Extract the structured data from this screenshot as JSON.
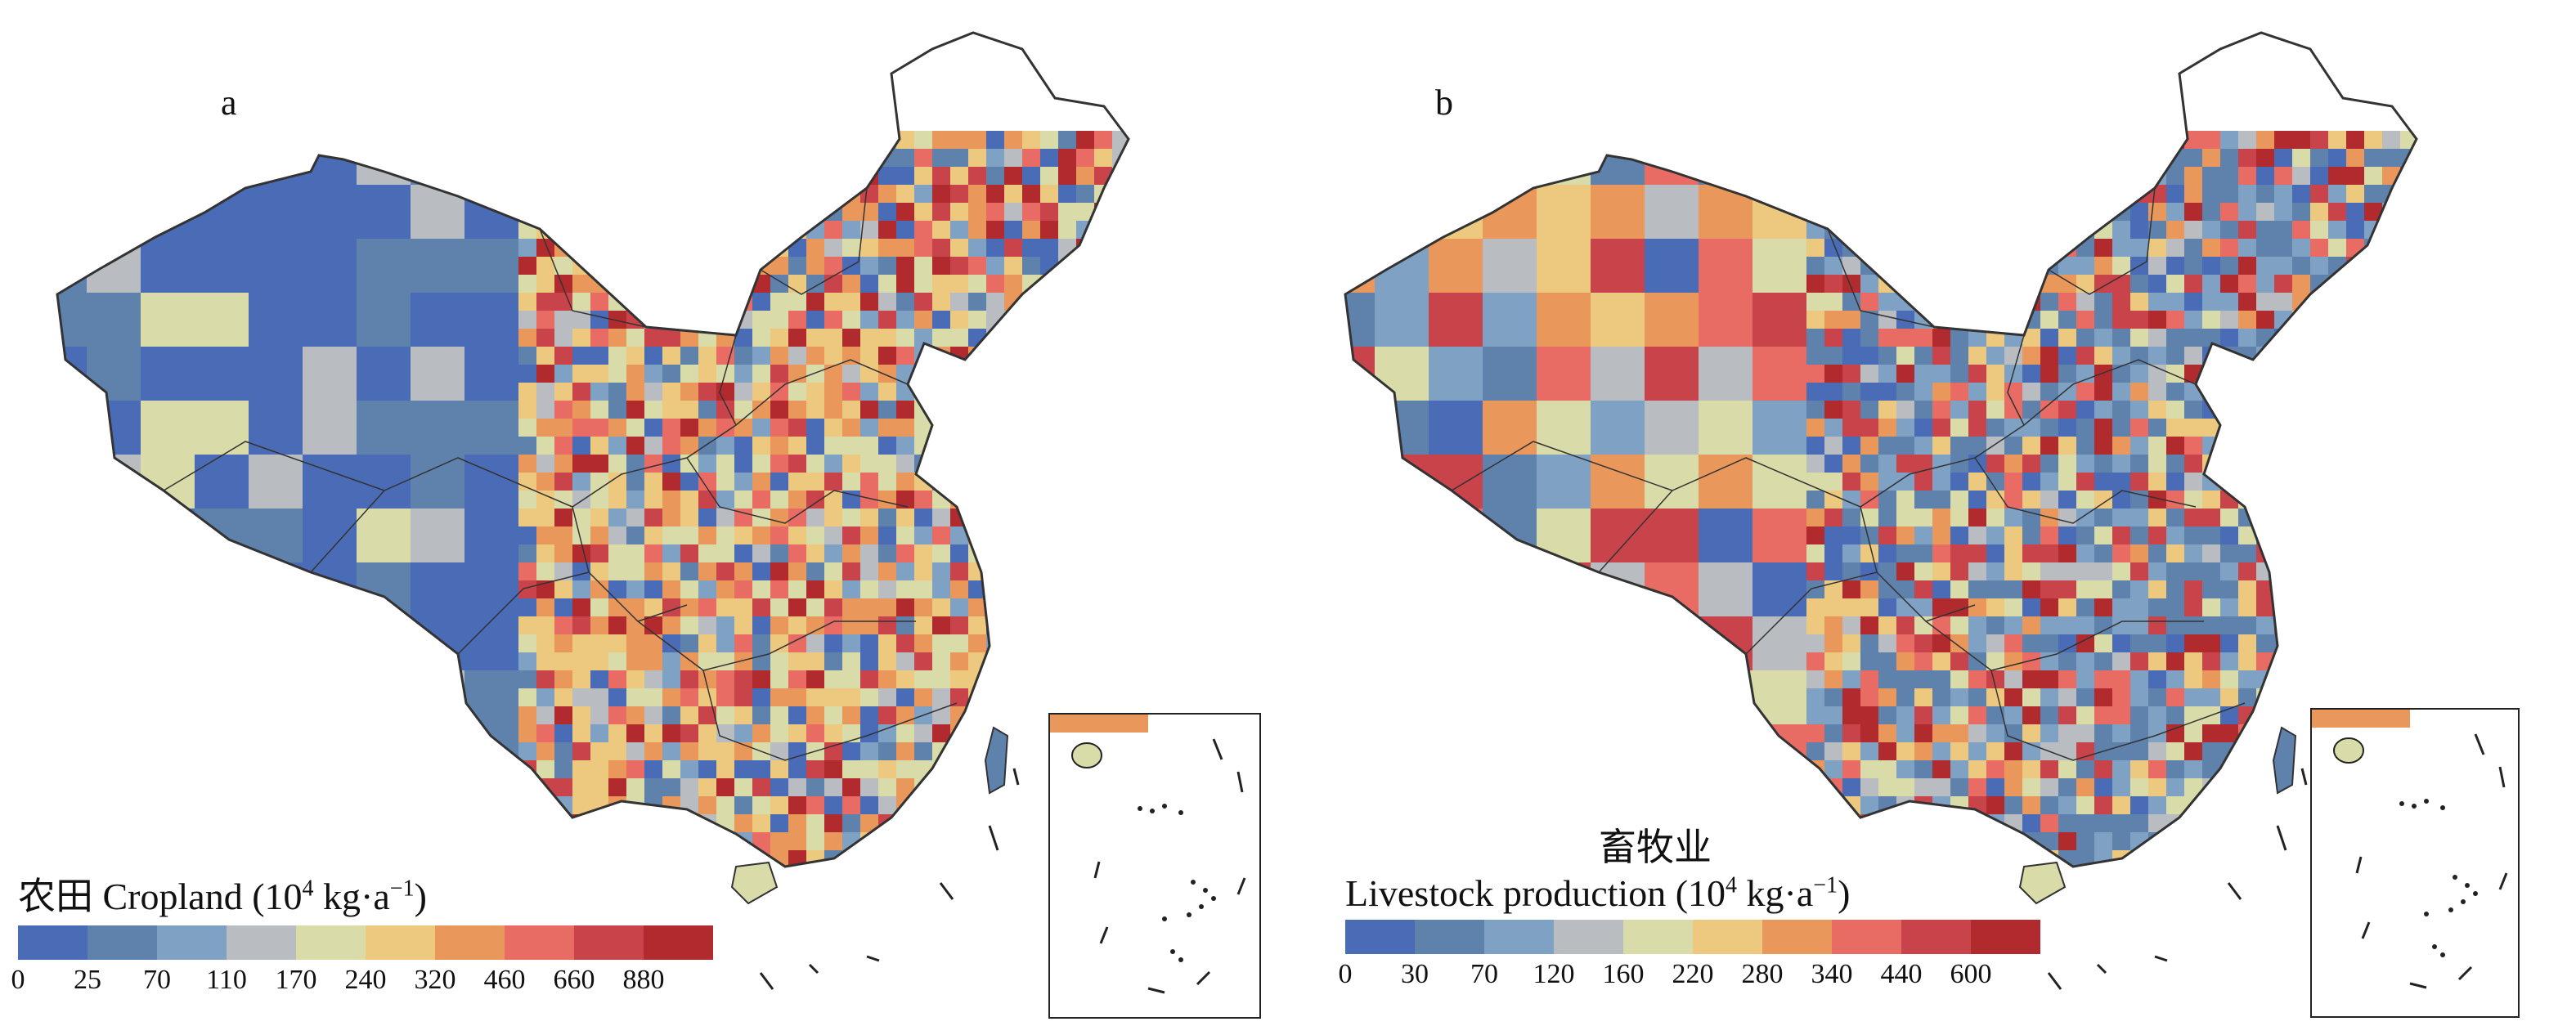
{
  "panels": [
    {
      "label": "a",
      "legend": {
        "title_cn": "农田",
        "title_en": "Cropland",
        "unit_prefix": "(10",
        "unit_exp": "4",
        "unit_mid": " kg·a",
        "unit_exp2": "−1",
        "unit_suffix": ")",
        "ticks": [
          "0",
          "25",
          "70",
          "110",
          "170",
          "240",
          "320",
          "460",
          "660",
          "880"
        ]
      }
    },
    {
      "label": "b",
      "legend": {
        "title_cn": "畜牧业",
        "title_en": "Livestock production",
        "unit_prefix": "(10",
        "unit_exp": "4",
        "unit_mid": " kg·a",
        "unit_exp2": "−1",
        "unit_suffix": ")",
        "ticks": [
          "0",
          "30",
          "70",
          "120",
          "160",
          "220",
          "280",
          "340",
          "440",
          "600"
        ]
      }
    }
  ],
  "colors": {
    "scale": [
      "#4a6bb5",
      "#5f82ad",
      "#7fa1c4",
      "#b9bcc0",
      "#d9dba8",
      "#ecc97f",
      "#e9975a",
      "#e86b64",
      "#c9434a",
      "#b02a2e"
    ],
    "boundary": "#333333"
  }
}
